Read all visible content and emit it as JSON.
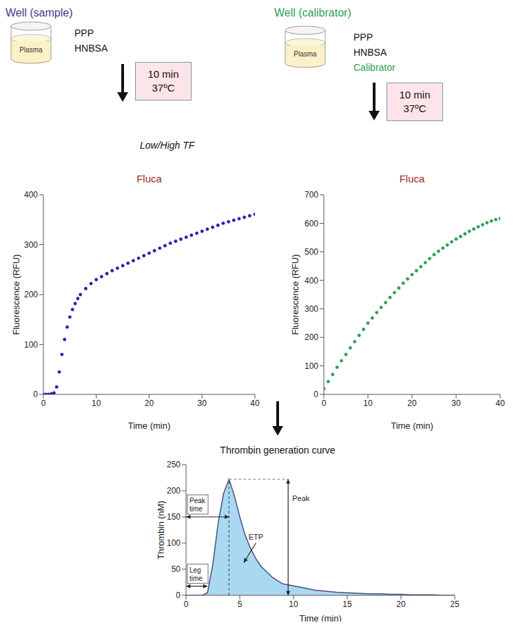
{
  "sample_well": {
    "title": "Well (sample)",
    "vessel_label": "Plasma",
    "reagents": [
      "PPP",
      "HNBSA"
    ],
    "incubation": [
      "10 min",
      "37ºC"
    ]
  },
  "calibrator_well": {
    "title": "Well (calibrator)",
    "vessel_label": "Plasma",
    "reagents": [
      "PPP",
      "HNBSA",
      "Calibrator"
    ],
    "incubation": [
      "10 min",
      "37ºC"
    ]
  },
  "trigger": "Low/High TF",
  "chart_data": [
    {
      "type": "scatter",
      "title": "Fluca",
      "x_label": "Time (min)",
      "y_label": "Fluorescence (RFU)",
      "x": [
        0,
        0.5,
        1,
        1.5,
        2,
        2.5,
        3,
        3.5,
        4,
        4.5,
        5,
        5.5,
        6,
        6.5,
        7,
        8,
        9,
        10,
        11,
        12,
        13,
        14,
        15,
        16,
        17,
        18,
        19,
        20,
        21,
        22,
        23,
        24,
        25,
        26,
        27,
        28,
        29,
        30,
        31,
        32,
        33,
        34,
        35,
        36,
        37,
        38,
        39,
        40
      ],
      "values": [
        0,
        0,
        0,
        1,
        3,
        15,
        45,
        80,
        110,
        135,
        155,
        170,
        182,
        192,
        200,
        212,
        222,
        230,
        236,
        242,
        248,
        253,
        258,
        263,
        268,
        273,
        278,
        283,
        288,
        293,
        298,
        303,
        307,
        311,
        315,
        319,
        323,
        327,
        331,
        335,
        339,
        343,
        346,
        349,
        352,
        355,
        358,
        361
      ],
      "color": "#2323b0",
      "marker": "circle",
      "line_style": "none",
      "xlim": [
        0,
        40
      ],
      "xticks": [
        0,
        10,
        20,
        30,
        40
      ],
      "ylim": [
        0,
        400
      ],
      "yticks": [
        0,
        100,
        200,
        300,
        400
      ],
      "grid": false
    },
    {
      "type": "scatter",
      "title": "Fluca",
      "x_label": "Time (min)",
      "y_label": "Fluorescence (RFU)",
      "x": [
        0,
        1,
        2,
        3,
        4,
        5,
        6,
        7,
        8,
        9,
        10,
        11,
        12,
        13,
        14,
        15,
        16,
        17,
        18,
        19,
        20,
        21,
        22,
        23,
        24,
        25,
        26,
        27,
        28,
        29,
        30,
        31,
        32,
        33,
        34,
        35,
        36,
        37,
        38,
        39,
        40
      ],
      "values": [
        20,
        45,
        70,
        95,
        118,
        140,
        163,
        185,
        207,
        228,
        250,
        268,
        287,
        305,
        322,
        340,
        357,
        373,
        390,
        405,
        420,
        434,
        448,
        462,
        476,
        490,
        502,
        513,
        524,
        535,
        545,
        554,
        563,
        572,
        580,
        588,
        595,
        602,
        608,
        613,
        617
      ],
      "color": "#2e9e57",
      "marker": "circle",
      "line_style": "none",
      "xlim": [
        0,
        40
      ],
      "xticks": [
        0,
        10,
        20,
        30,
        40
      ],
      "ylim": [
        0,
        700
      ],
      "yticks": [
        0,
        100,
        200,
        300,
        400,
        500,
        600,
        700
      ],
      "grid": false
    },
    {
      "type": "area",
      "title": "Thrombin generation curve",
      "x_label": "Time (min)",
      "y_label": "Thrombin (nM)",
      "x": [
        0,
        0.5,
        1,
        1.5,
        2,
        2.5,
        3,
        3.5,
        4,
        4.5,
        5,
        5.5,
        6,
        6.5,
        7,
        7.5,
        8,
        8.5,
        9,
        9.5,
        10,
        11,
        12,
        13,
        14,
        15,
        16,
        17,
        18,
        19,
        20,
        21,
        22,
        23,
        24,
        25
      ],
      "values": [
        0,
        0,
        0,
        0,
        5,
        60,
        140,
        195,
        222,
        190,
        150,
        115,
        90,
        70,
        55,
        45,
        35,
        28,
        22,
        20,
        18,
        14,
        10,
        8,
        6,
        5,
        4,
        3,
        3,
        2,
        2,
        1,
        1,
        1,
        0,
        0
      ],
      "color": "#a9d9f2",
      "xlim": [
        0,
        25
      ],
      "xticks": [
        0,
        5,
        10,
        15,
        20,
        25
      ],
      "ylim": [
        0,
        250
      ],
      "yticks": [
        0,
        50,
        100,
        150,
        200,
        250
      ],
      "grid": false,
      "annotations": {
        "peak_time": "Peak time",
        "lag_time": "Leg time",
        "etp": "ETP",
        "peak": "Peak"
      }
    }
  ]
}
